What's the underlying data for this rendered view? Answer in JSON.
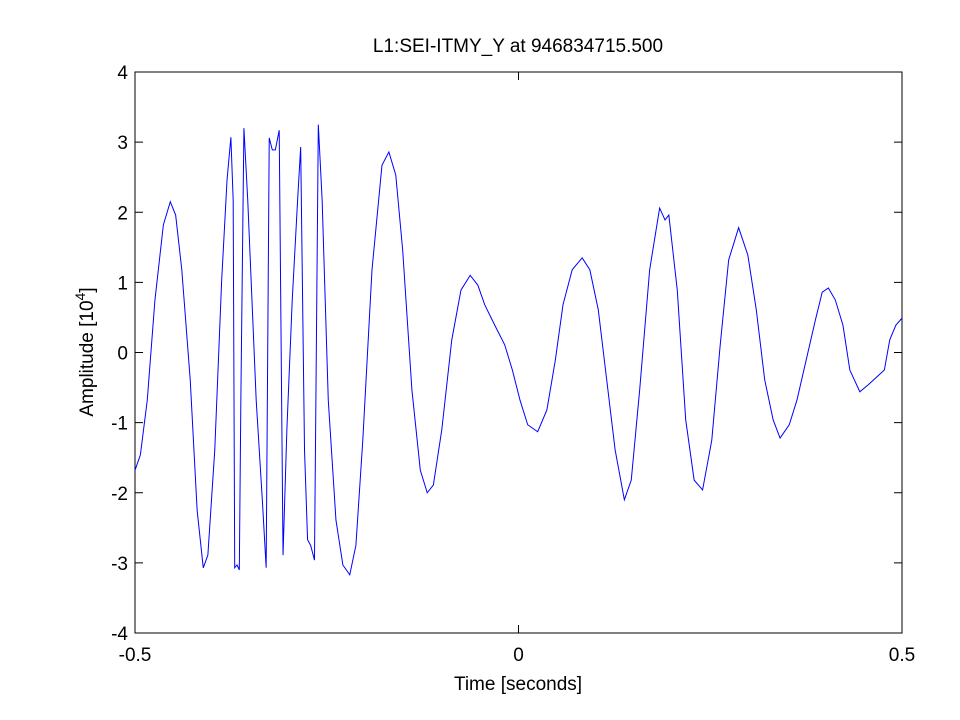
{
  "chart_data": {
    "type": "line",
    "title": "L1:SEI-ITMY_Y at 946834715.500",
    "x_label": "Time [seconds]",
    "y_label": [
      "Amplitude [10",
      "4",
      "]"
    ],
    "xlim": [
      -0.5,
      0.5
    ],
    "xticks": [
      -0.5,
      0,
      0.5
    ],
    "ylim": [
      -4,
      4
    ],
    "yticks": [
      -4,
      -3,
      -2,
      -1,
      0,
      1,
      2,
      3,
      4
    ],
    "grid": false,
    "x": [
      -0.5,
      -0.493,
      -0.484,
      -0.474,
      -0.463,
      -0.454,
      -0.447,
      -0.439,
      -0.428,
      -0.419,
      -0.411,
      -0.405,
      -0.396,
      -0.387,
      -0.38,
      -0.375,
      -0.372,
      -0.37,
      -0.367,
      -0.364,
      -0.362,
      -0.358,
      -0.353,
      -0.342,
      -0.334,
      -0.329,
      -0.325,
      -0.321,
      -0.317,
      -0.312,
      -0.307,
      -0.302,
      -0.295,
      -0.288,
      -0.284,
      -0.279,
      -0.275,
      -0.271,
      -0.266,
      -0.261,
      -0.256,
      -0.248,
      -0.238,
      -0.229,
      -0.22,
      -0.212,
      -0.203,
      -0.191,
      -0.178,
      -0.169,
      -0.16,
      -0.151,
      -0.139,
      -0.128,
      -0.119,
      -0.111,
      -0.1,
      -0.087,
      -0.075,
      -0.063,
      -0.053,
      -0.044,
      -0.031,
      -0.018,
      -0.008,
      0.002,
      0.012,
      0.025,
      0.037,
      0.048,
      0.058,
      0.07,
      0.083,
      0.093,
      0.104,
      0.115,
      0.126,
      0.138,
      0.147,
      0.158,
      0.171,
      0.184,
      0.191,
      0.196,
      0.207,
      0.218,
      0.229,
      0.24,
      0.252,
      0.263,
      0.274,
      0.287,
      0.299,
      0.31,
      0.321,
      0.332,
      0.341,
      0.353,
      0.363,
      0.375,
      0.387,
      0.396,
      0.404,
      0.413,
      0.423,
      0.432,
      0.445,
      0.456,
      0.466,
      0.477,
      0.484,
      0.492,
      0.5
    ],
    "series": [
      {
        "color": "#0000ff",
        "values": [
          -1.68,
          -1.46,
          -0.68,
          0.75,
          1.82,
          2.15,
          1.96,
          1.18,
          -0.39,
          -2.25,
          -3.07,
          -2.89,
          -1.39,
          1.03,
          2.46,
          3.07,
          2.17,
          -3.07,
          -3.03,
          -3.1,
          -0.68,
          3.2,
          2.17,
          -0.68,
          -2.1,
          -3.07,
          3.06,
          2.89,
          2.89,
          3.17,
          -2.89,
          -1.1,
          0.75,
          2.17,
          2.93,
          -1.39,
          -2.67,
          -2.75,
          -2.96,
          3.25,
          2.17,
          -0.68,
          -2.39,
          -3.03,
          -3.17,
          -2.75,
          -1.25,
          1.18,
          2.67,
          2.86,
          2.53,
          1.46,
          -0.53,
          -1.68,
          -2.0,
          -1.89,
          -1.1,
          0.18,
          0.89,
          1.1,
          0.96,
          0.68,
          0.39,
          0.11,
          -0.25,
          -0.68,
          -1.03,
          -1.13,
          -0.82,
          -0.11,
          0.68,
          1.18,
          1.35,
          1.18,
          0.61,
          -0.39,
          -1.39,
          -2.1,
          -1.82,
          -0.53,
          1.18,
          2.06,
          1.89,
          1.96,
          0.89,
          -0.96,
          -1.82,
          -1.96,
          -1.25,
          0.11,
          1.32,
          1.78,
          1.39,
          0.61,
          -0.39,
          -0.96,
          -1.22,
          -1.03,
          -0.68,
          -0.11,
          0.46,
          0.86,
          0.92,
          0.75,
          0.39,
          -0.25,
          -0.56,
          -0.46,
          -0.36,
          -0.25,
          0.18,
          0.39,
          0.49
        ]
      }
    ]
  }
}
